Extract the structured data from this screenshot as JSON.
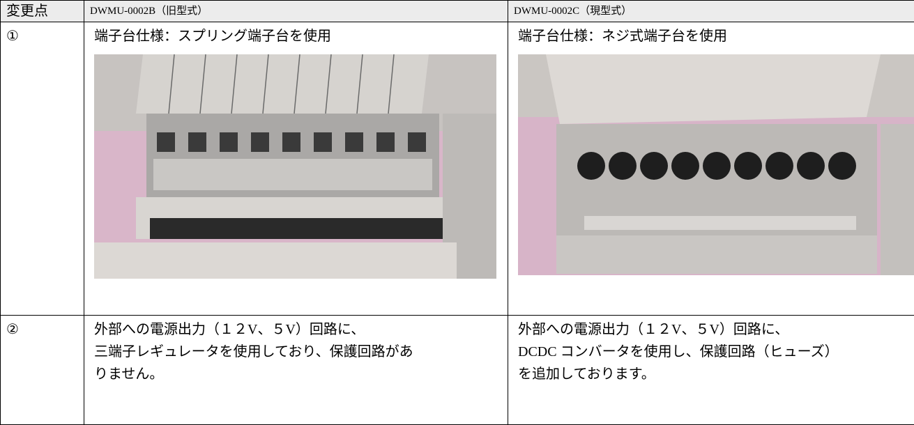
{
  "table": {
    "header": [
      "変更点",
      "DWMU-0002B（旧型式）",
      "DWMU-0002C（現型式）"
    ],
    "rows": [
      [
        "①",
        "端子台仕様：スプリング端子台を使用",
        "端子台仕様：ネジ式端子台を使用"
      ],
      [
        "②",
        [
          "外部への電源出力（１２V、５V）回路に、",
          "三端子レギュレータを使用しており、保護回路があ",
          "りません。"
        ],
        [
          "外部への電源出力（１２V、５V）回路に、",
          "DCDC コンバータを使用し、保護回路（ヒューズ）",
          "を追加しております。"
        ]
      ]
    ]
  }
}
